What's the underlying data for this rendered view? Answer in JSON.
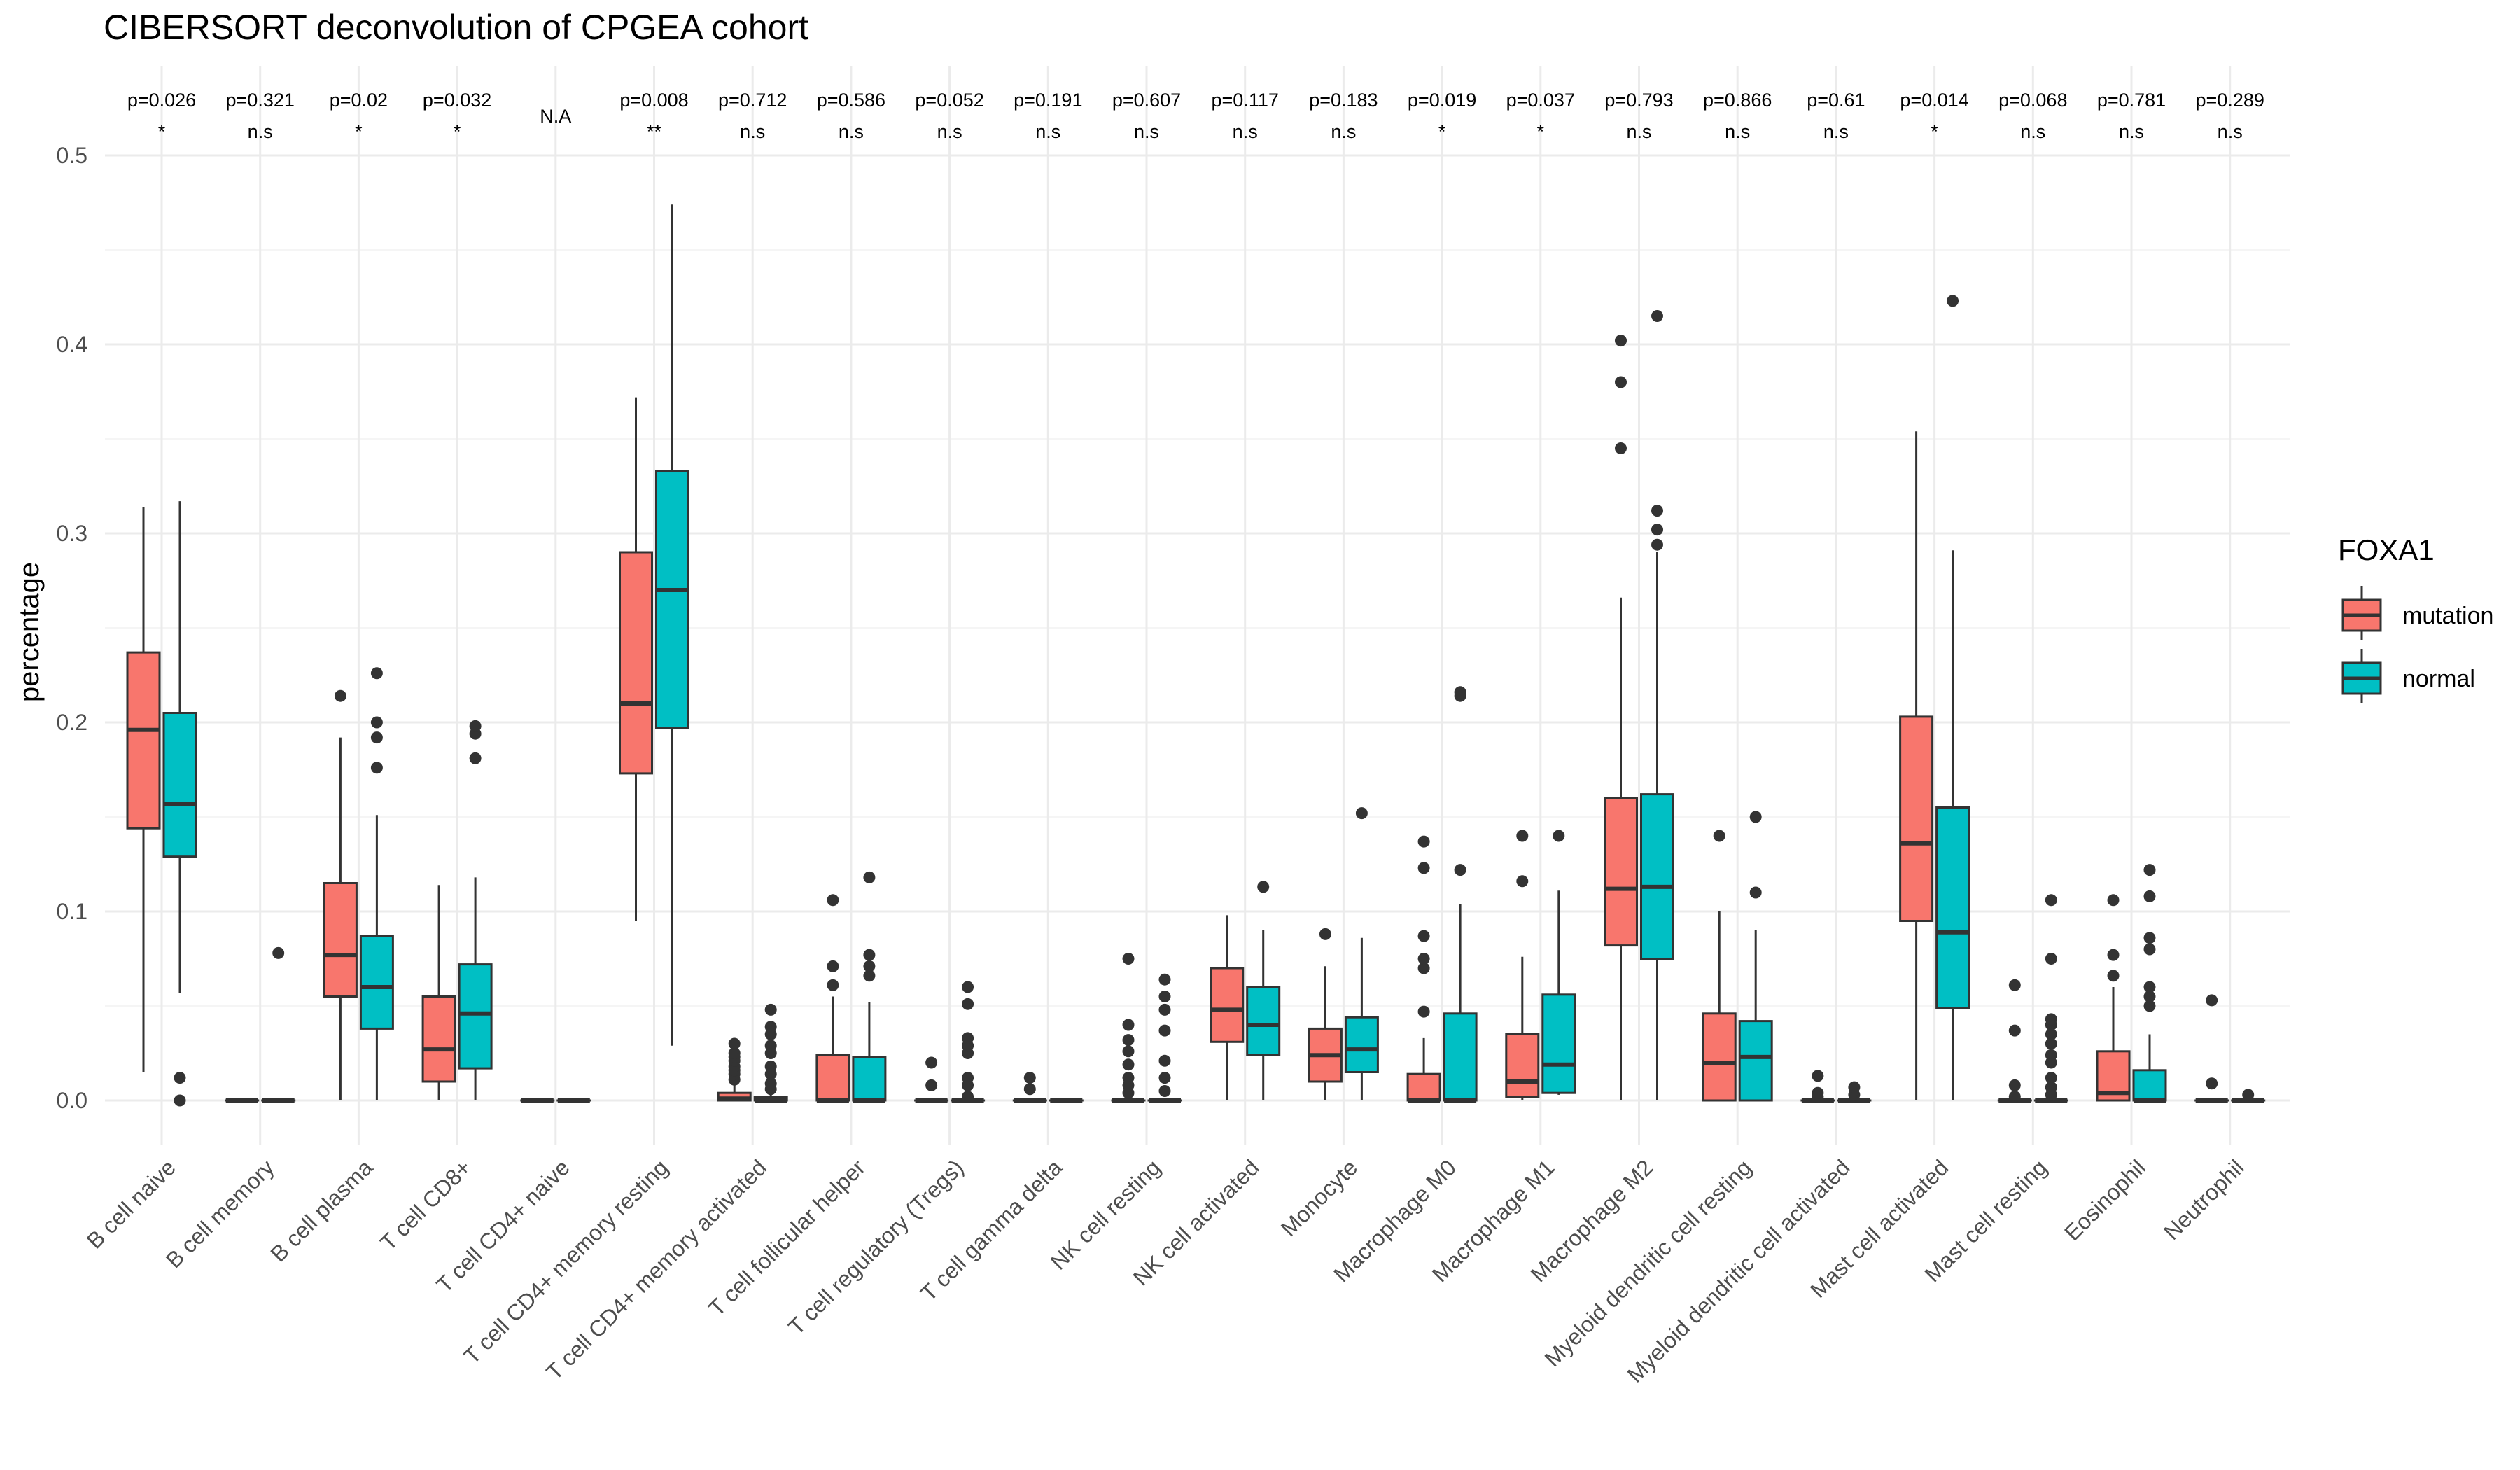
{
  "chart_data": {
    "type": "box",
    "title": "CIBERSORT deconvolution of CPGEA cohort",
    "xlabel": "",
    "ylabel": "percentage",
    "ylim": [
      -0.025,
      0.54
    ],
    "yticks": [
      0.0,
      0.1,
      0.2,
      0.3,
      0.4,
      0.5
    ],
    "ytick_labels": [
      "0.0",
      "0.1",
      "0.2",
      "0.3",
      "0.4",
      "0.5"
    ],
    "grid": true,
    "legend": {
      "title": "FOXA1",
      "position": "right",
      "entries": [
        "mutation",
        "normal"
      ]
    },
    "colors": {
      "mutation": "#F8766D",
      "normal": "#00BFC4",
      "outline": "#333333"
    },
    "categories": [
      "B cell naive",
      "B cell memory",
      "B cell plasma",
      "T cell CD8+",
      "T cell CD4+ naive",
      "T cell CD4+ memory resting",
      "T cell CD4+ memory activated",
      "T cell follicular helper",
      "T cell regulatory (Tregs)",
      "T cell gamma delta",
      "NK cell resting",
      "NK cell activated",
      "Monocyte",
      "Macrophage M0",
      "Macrophage M1",
      "Macrophage M2",
      "Myeloid dendritic cell resting",
      "Myeloid dendritic cell activated",
      "Mast cell activated",
      "Mast cell resting",
      "Eosinophil",
      "Neutrophil"
    ],
    "pvalues": [
      "p=0.026",
      "p=0.321",
      "p=0.02",
      "p=0.032",
      "",
      "p=0.008",
      "p=0.712",
      "p=0.586",
      "p=0.052",
      "p=0.191",
      "p=0.607",
      "p=0.117",
      "p=0.183",
      "p=0.019",
      "p=0.037",
      "p=0.793",
      "p=0.866",
      "p=0.61",
      "p=0.014",
      "p=0.068",
      "p=0.781",
      "p=0.289"
    ],
    "significance": [
      "*",
      "n.s",
      "*",
      "*",
      "N.A",
      "**",
      "n.s",
      "n.s",
      "n.s",
      "n.s",
      "n.s",
      "n.s",
      "n.s",
      "*",
      "*",
      "n.s",
      "n.s",
      "n.s",
      "*",
      "n.s",
      "n.s",
      "n.s"
    ],
    "series": [
      {
        "name": "mutation",
        "boxes": [
          {
            "min": 0.015,
            "q1": 0.144,
            "median": 0.196,
            "q3": 0.237,
            "max": 0.314,
            "outliers": []
          },
          {
            "min": 0,
            "q1": 0,
            "median": 0,
            "q3": 0,
            "max": 0,
            "outliers": []
          },
          {
            "min": 0,
            "q1": 0.055,
            "median": 0.077,
            "q3": 0.115,
            "max": 0.192,
            "outliers": [
              0.214
            ]
          },
          {
            "min": 0,
            "q1": 0.01,
            "median": 0.027,
            "q3": 0.055,
            "max": 0.114,
            "outliers": []
          },
          {
            "min": 0,
            "q1": 0,
            "median": 0,
            "q3": 0,
            "max": 0,
            "outliers": []
          },
          {
            "min": 0.095,
            "q1": 0.173,
            "median": 0.21,
            "q3": 0.29,
            "max": 0.372,
            "outliers": []
          },
          {
            "min": 0,
            "q1": 0,
            "median": 0.001,
            "q3": 0.004,
            "max": 0.008,
            "outliers": [
              0.011,
              0.014,
              0.016,
              0.018,
              0.021,
              0.023,
              0.025,
              0.03
            ]
          },
          {
            "min": 0,
            "q1": 0,
            "median": 0,
            "q3": 0.024,
            "max": 0.055,
            "outliers": [
              0.061,
              0.071,
              0.106
            ]
          },
          {
            "min": 0,
            "q1": 0,
            "median": 0,
            "q3": 0,
            "max": 0,
            "outliers": [
              0.008,
              0.02
            ]
          },
          {
            "min": 0,
            "q1": 0,
            "median": 0,
            "q3": 0,
            "max": 0,
            "outliers": [
              0.006,
              0.012
            ]
          },
          {
            "min": 0,
            "q1": 0,
            "median": 0,
            "q3": 0,
            "max": 0,
            "outliers": [
              0.004,
              0.008,
              0.012,
              0.019,
              0.026,
              0.032,
              0.04,
              0.075
            ]
          },
          {
            "min": 0,
            "q1": 0.031,
            "median": 0.048,
            "q3": 0.07,
            "max": 0.098,
            "outliers": []
          },
          {
            "min": 0,
            "q1": 0.01,
            "median": 0.024,
            "q3": 0.038,
            "max": 0.071,
            "outliers": [
              0.088
            ]
          },
          {
            "min": 0,
            "q1": 0,
            "median": 0,
            "q3": 0.014,
            "max": 0.033,
            "outliers": [
              0.047,
              0.07,
              0.075,
              0.087,
              0.123,
              0.137
            ]
          },
          {
            "min": 0,
            "q1": 0.002,
            "median": 0.01,
            "q3": 0.035,
            "max": 0.076,
            "outliers": [
              0.116,
              0.14
            ]
          },
          {
            "min": 0,
            "q1": 0.082,
            "median": 0.112,
            "q3": 0.16,
            "max": 0.266,
            "outliers": [
              0.345,
              0.38,
              0.402
            ]
          },
          {
            "min": 0,
            "q1": 0,
            "median": 0.02,
            "q3": 0.046,
            "max": 0.1,
            "outliers": [
              0.14
            ]
          },
          {
            "min": 0,
            "q1": 0,
            "median": 0,
            "q3": 0,
            "max": 0,
            "outliers": [
              0.002,
              0.004,
              0.013
            ]
          },
          {
            "min": 0,
            "q1": 0.095,
            "median": 0.136,
            "q3": 0.203,
            "max": 0.354,
            "outliers": []
          },
          {
            "min": 0,
            "q1": 0,
            "median": 0,
            "q3": 0,
            "max": 0,
            "outliers": [
              0.002,
              0.008,
              0.037,
              0.061
            ]
          },
          {
            "min": 0,
            "q1": 0,
            "median": 0.004,
            "q3": 0.026,
            "max": 0.06,
            "outliers": [
              0.066,
              0.077,
              0.106
            ]
          },
          {
            "min": 0,
            "q1": 0,
            "median": 0,
            "q3": 0,
            "max": 0,
            "outliers": [
              0.009,
              0.053
            ]
          }
        ]
      },
      {
        "name": "normal",
        "boxes": [
          {
            "min": 0.057,
            "q1": 0.129,
            "median": 0.157,
            "q3": 0.205,
            "max": 0.317,
            "outliers": [
              0,
              0.012
            ]
          },
          {
            "min": 0,
            "q1": 0,
            "median": 0,
            "q3": 0,
            "max": 0,
            "outliers": [
              0.078
            ]
          },
          {
            "min": 0,
            "q1": 0.038,
            "median": 0.06,
            "q3": 0.087,
            "max": 0.151,
            "outliers": [
              0.176,
              0.192,
              0.2,
              0.226
            ]
          },
          {
            "min": 0,
            "q1": 0.017,
            "median": 0.046,
            "q3": 0.072,
            "max": 0.118,
            "outliers": [
              0.181,
              0.194,
              0.198
            ]
          },
          {
            "min": 0,
            "q1": 0,
            "median": 0,
            "q3": 0,
            "max": 0,
            "outliers": []
          },
          {
            "min": 0.029,
            "q1": 0.197,
            "median": 0.27,
            "q3": 0.333,
            "max": 0.474,
            "outliers": []
          },
          {
            "min": 0,
            "q1": 0,
            "median": 0,
            "q3": 0.002,
            "max": 0.004,
            "outliers": [
              0.006,
              0.009,
              0.014,
              0.018,
              0.025,
              0.029,
              0.035,
              0.039,
              0.048
            ]
          },
          {
            "min": 0,
            "q1": 0,
            "median": 0,
            "q3": 0.023,
            "max": 0.052,
            "outliers": [
              0.066,
              0.071,
              0.077,
              0.118
            ]
          },
          {
            "min": 0,
            "q1": 0,
            "median": 0,
            "q3": 0,
            "max": 0,
            "outliers": [
              0.002,
              0.008,
              0.012,
              0.025,
              0.029,
              0.033,
              0.051,
              0.06
            ]
          },
          {
            "min": 0,
            "q1": 0,
            "median": 0,
            "q3": 0,
            "max": 0,
            "outliers": []
          },
          {
            "min": 0,
            "q1": 0,
            "median": 0,
            "q3": 0,
            "max": 0,
            "outliers": [
              0.005,
              0.012,
              0.021,
              0.037,
              0.048,
              0.055,
              0.064
            ]
          },
          {
            "min": 0,
            "q1": 0.024,
            "median": 0.04,
            "q3": 0.06,
            "max": 0.09,
            "outliers": [
              0.113
            ]
          },
          {
            "min": 0,
            "q1": 0.015,
            "median": 0.027,
            "q3": 0.044,
            "max": 0.086,
            "outliers": [
              0.152
            ]
          },
          {
            "min": 0,
            "q1": 0,
            "median": 0,
            "q3": 0.046,
            "max": 0.104,
            "outliers": [
              0.122,
              0.214,
              0.216
            ]
          },
          {
            "min": 0.003,
            "q1": 0.004,
            "median": 0.019,
            "q3": 0.056,
            "max": 0.111,
            "outliers": [
              0.14
            ]
          },
          {
            "min": 0,
            "q1": 0.075,
            "median": 0.113,
            "q3": 0.162,
            "max": 0.29,
            "outliers": [
              0.294,
              0.302,
              0.312,
              0.415
            ]
          },
          {
            "min": 0,
            "q1": 0,
            "median": 0.023,
            "q3": 0.042,
            "max": 0.09,
            "outliers": [
              0.11,
              0.15
            ]
          },
          {
            "min": 0,
            "q1": 0,
            "median": 0,
            "q3": 0,
            "max": 0,
            "outliers": [
              0.003,
              0.007
            ]
          },
          {
            "min": 0,
            "q1": 0.049,
            "median": 0.089,
            "q3": 0.155,
            "max": 0.291,
            "outliers": [
              0.423
            ]
          },
          {
            "min": 0,
            "q1": 0,
            "median": 0,
            "q3": 0,
            "max": 0,
            "outliers": [
              0.003,
              0.007,
              0.012,
              0.02,
              0.024,
              0.03,
              0.035,
              0.04,
              0.043,
              0.075,
              0.106
            ]
          },
          {
            "min": 0,
            "q1": 0,
            "median": 0,
            "q3": 0.016,
            "max": 0.035,
            "outliers": [
              0.05,
              0.055,
              0.06,
              0.08,
              0.086,
              0.108,
              0.122
            ]
          },
          {
            "min": 0,
            "q1": 0,
            "median": 0,
            "q3": 0,
            "max": 0,
            "outliers": [
              0.003
            ]
          }
        ]
      }
    ]
  }
}
